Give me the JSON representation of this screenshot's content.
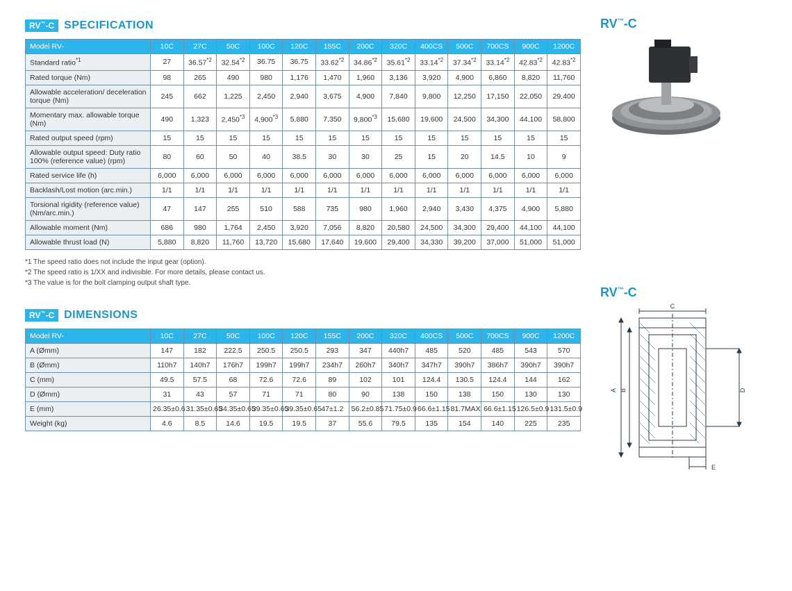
{
  "brand": {
    "badge": "RV™-C",
    "spec_title": "SPECIFICATION",
    "dim_title": "DIMENSIONS",
    "side_label": "RV™-C"
  },
  "colors": {
    "accent": "#2bb5ea",
    "heading": "#1b95d1",
    "border": "#6f8fa2",
    "row_head_bg": "#e9eff2",
    "text": "#333333"
  },
  "spec_table": {
    "columns": [
      "10C",
      "27C",
      "50C",
      "100C",
      "120C",
      "155C",
      "200C",
      "320C",
      "400CS",
      "500C",
      "700CS",
      "900C",
      "1200C"
    ],
    "rows": [
      {
        "label": "Model RV-",
        "is_header": true
      },
      {
        "label": "Standard ratio*1",
        "cells": [
          "27",
          "36.57*2",
          "32.54*2",
          "36.75",
          "36.75",
          "33.62*2",
          "34.86*2",
          "35.61*2",
          "33.14*2",
          "37.34*2",
          "33.14*2",
          "42.83*2",
          "42.83*2"
        ]
      },
      {
        "label": "Rated torque (Nm)",
        "cells": [
          "98",
          "265",
          "490",
          "980",
          "1,176",
          "1,470",
          "1,960",
          "3,136",
          "3,920",
          "4,900",
          "6,860",
          "8,820",
          "11,760"
        ]
      },
      {
        "label": "Allowable acceleration/ deceleration torque (Nm)",
        "cells": [
          "245",
          "662",
          "1,225",
          "2,450",
          "2,940",
          "3,675",
          "4,900",
          "7,840",
          "9,800",
          "12,250",
          "17,150",
          "22,050",
          "29,400"
        ]
      },
      {
        "label": "Momentary max. allowable torque (Nm)",
        "cells": [
          "490",
          "1,323",
          "2,450*3",
          "4,900*3",
          "5,880",
          "7,350",
          "9,800*3",
          "15,680",
          "19,600",
          "24,500",
          "34,300",
          "44,100",
          "58,800"
        ]
      },
      {
        "label": "Rated output speed (rpm)",
        "cells": [
          "15",
          "15",
          "15",
          "15",
          "15",
          "15",
          "15",
          "15",
          "15",
          "15",
          "15",
          "15",
          "15"
        ]
      },
      {
        "label": "Allowable output speed: Duty ratio 100% (reference value) (rpm)",
        "cells": [
          "80",
          "60",
          "50",
          "40",
          "38.5",
          "30",
          "30",
          "25",
          "15",
          "20",
          "14.5",
          "10",
          "9"
        ]
      },
      {
        "label": "Rated service life (h)",
        "cells": [
          "6,000",
          "6,000",
          "6,000",
          "6,000",
          "6,000",
          "6,000",
          "6,000",
          "6,000",
          "6,000",
          "6,000",
          "6,000",
          "6,000",
          "6,000"
        ]
      },
      {
        "label": "Backlash/Lost motion (arc.min.)",
        "cells": [
          "1/1",
          "1/1",
          "1/1",
          "1/1",
          "1/1",
          "1/1",
          "1/1",
          "1/1",
          "1/1",
          "1/1",
          "1/1",
          "1/1",
          "1/1"
        ]
      },
      {
        "label": "Torsional rigidity (reference value) (Nm/arc.min.)",
        "cells": [
          "47",
          "147",
          "255",
          "510",
          "588",
          "735",
          "980",
          "1,960",
          "2,940",
          "3,430",
          "4,375",
          "4,900",
          "5,880"
        ]
      },
      {
        "label": "Allowable moment (Nm)",
        "cells": [
          "686",
          "980",
          "1,764",
          "2,450",
          "3,920",
          "7,056",
          "8,820",
          "20,580",
          "24,500",
          "34,300",
          "29,400",
          "44,100",
          "44,100"
        ]
      },
      {
        "label": "Allowable thrust load (N)",
        "cells": [
          "5,880",
          "8,820",
          "11,760",
          "13,720",
          "15,680",
          "17,640",
          "19,600",
          "29,400",
          "34,330",
          "39,200",
          "37,000",
          "51,000",
          "51,000"
        ]
      }
    ]
  },
  "footnotes": [
    "*1 The speed ratio does not include the input gear (option).",
    "*2 The speed ratio is 1/XX and indivisible. For more details, please contact us.",
    "*3 The value is for the bolt clamping output shaft type."
  ],
  "dim_table": {
    "columns": [
      "10C",
      "27C",
      "50C",
      "100C",
      "120C",
      "155C",
      "200C",
      "320C",
      "400CS",
      "500C",
      "700CS",
      "900C",
      "1200C"
    ],
    "rows": [
      {
        "label": "Model RV-",
        "is_header": true
      },
      {
        "label": "A (Ømm)",
        "cells": [
          "147",
          "182",
          "222.5",
          "250.5",
          "250.5",
          "293",
          "347",
          "440h7",
          "485",
          "520",
          "485",
          "543",
          "570"
        ]
      },
      {
        "label": "B (Ømm)",
        "cells": [
          "110h7",
          "140h7",
          "176h7",
          "199h7",
          "199h7",
          "234h7",
          "260h7",
          "340h7",
          "347h7",
          "390h7",
          "386h7",
          "390h7",
          "390h7"
        ]
      },
      {
        "label": "C (mm)",
        "cells": [
          "49.5",
          "57.5",
          "68",
          "72.6",
          "72.6",
          "89",
          "102",
          "101",
          "124.4",
          "130.5",
          "124.4",
          "144",
          "162"
        ]
      },
      {
        "label": "D (Ømm)",
        "cells": [
          "31",
          "43",
          "57",
          "71",
          "71",
          "80",
          "90",
          "138",
          "150",
          "138",
          "150",
          "130",
          "130"
        ]
      },
      {
        "label": "E (mm)",
        "cells": [
          "26.35±0.6",
          "31.35±0.65",
          "34.35±0.65",
          "39.35±0.65",
          "39.35±0.65",
          "47±1.2",
          "56.2±0.85",
          "71.75±0.9",
          "66.6±1.15",
          "81.7MAX",
          "66.6±1.15",
          "126.5±0.9",
          "131.5±0.9"
        ]
      },
      {
        "label": "Weight (kg)",
        "cells": [
          "4.6",
          "8.5",
          "14.6",
          "19.5",
          "19.5",
          "37",
          "55.6",
          "79.5",
          "135",
          "154",
          "140",
          "225",
          "235"
        ]
      }
    ]
  },
  "drawing": {
    "labels": {
      "A": "A",
      "B": "B",
      "C": "C",
      "D": "D",
      "E": "E"
    },
    "stroke": "#253a4a",
    "fill": "#ffffff"
  }
}
